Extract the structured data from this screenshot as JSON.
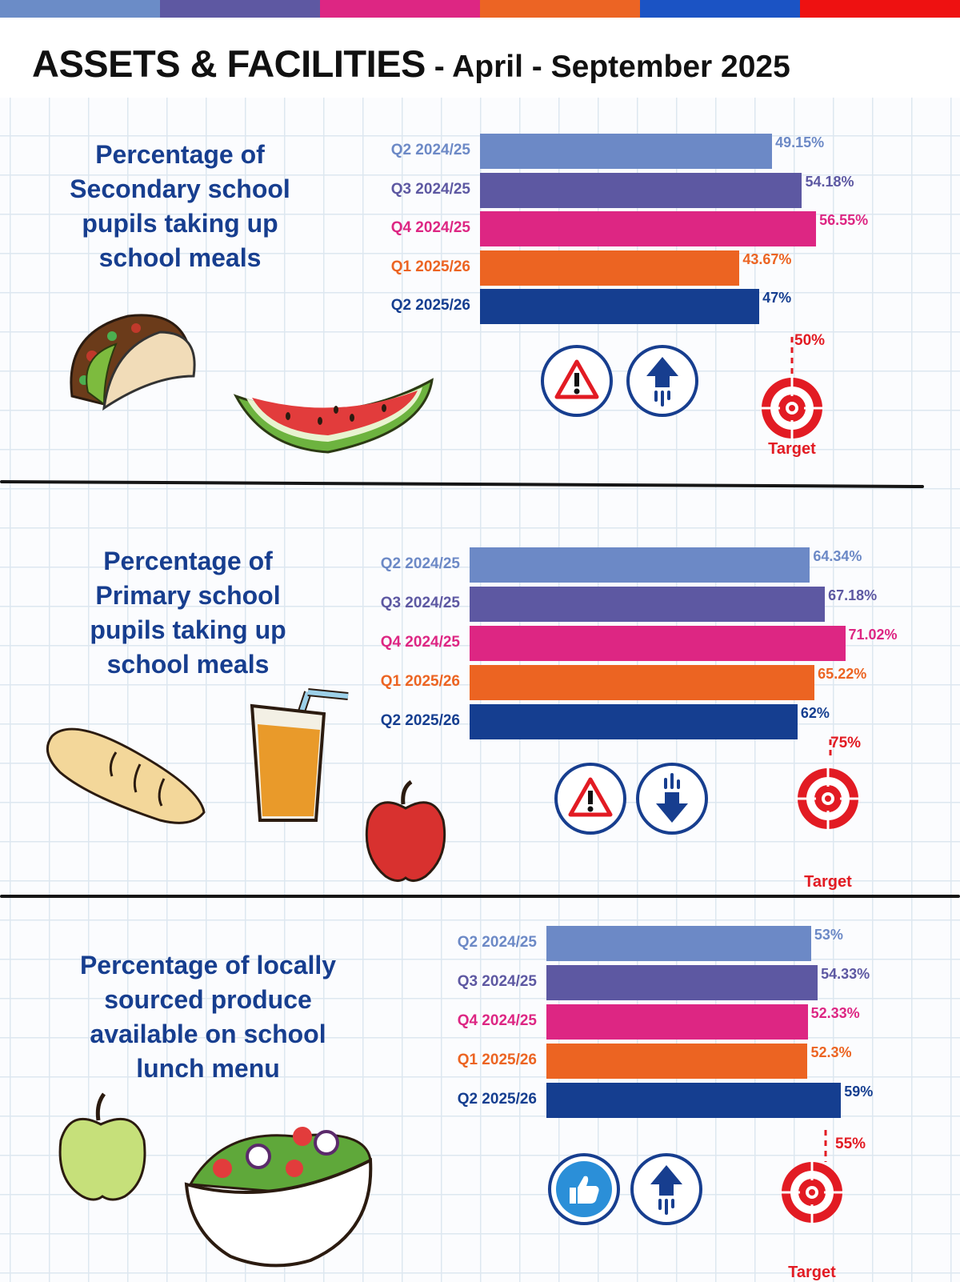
{
  "header": {
    "title_main": "ASSETS & FACILITIES",
    "title_sub": " - April - September 2025",
    "stripe_colors": [
      "#6b8cc7",
      "#5e58a2",
      "#dd2683",
      "#ec6424",
      "#1b53c4",
      "#ee1111"
    ]
  },
  "colors": {
    "q2_2425": "#6c89c6",
    "q3_2425": "#5d58a2",
    "q4_2425": "#dd2683",
    "q1_2526": "#ec6422",
    "q2_2526": "#153e90",
    "target": "#e21b23",
    "heading": "#173e8f"
  },
  "sections": [
    {
      "metric_lines": [
        "Percentage  of",
        "Secondary school",
        "pupils taking up",
        "school meals"
      ],
      "target_value": "50%",
      "target_label": "Target",
      "status_icons": [
        "warning-icon",
        "trend-up-icon"
      ]
    },
    {
      "metric_lines": [
        "Percentage of",
        "Primary school",
        "pupils taking up",
        "school meals"
      ],
      "target_value": "75%",
      "target_label": "Target",
      "status_icons": [
        "warning-icon",
        "trend-down-icon"
      ]
    },
    {
      "metric_lines": [
        "Percentage of locally",
        "sourced produce",
        "available on school",
        "lunch menu"
      ],
      "target_value": "55%",
      "target_label": "Target",
      "status_icons": [
        "thumbs-up-icon",
        "trend-up-icon"
      ]
    }
  ],
  "chart_data": [
    {
      "type": "bar",
      "orientation": "horizontal",
      "title": "Percentage of Secondary school pupils taking up school meals",
      "categories": [
        "Q2 2024/25",
        "Q3 2024/25",
        "Q4 2024/25",
        "Q1 2025/26",
        "Q2 2025/26"
      ],
      "values": [
        49.15,
        54.18,
        56.55,
        43.67,
        47
      ],
      "value_labels": [
        "49.15%",
        "54.18%",
        "56.55%",
        "43.67%",
        "47%"
      ],
      "target": 50,
      "xlim": [
        0,
        59.5
      ]
    },
    {
      "type": "bar",
      "orientation": "horizontal",
      "title": "Percentage of Primary school pupils taking up school meals",
      "categories": [
        "Q2 2024/25",
        "Q3 2024/25",
        "Q4 2024/25",
        "Q1 2025/26",
        "Q2 2025/26"
      ],
      "values": [
        64.34,
        67.18,
        71.02,
        65.22,
        62
      ],
      "value_labels": [
        "64.34%",
        "67.18%",
        "71.02%",
        "65.22%",
        "62%"
      ],
      "target": 75,
      "xlim": [
        0,
        90
      ]
    },
    {
      "type": "bar",
      "orientation": "horizontal",
      "title": "Percentage of locally sourced produce available on school lunch menu",
      "categories": [
        "Q2 2024/25",
        "Q3 2024/25",
        "Q4 2024/25",
        "Q1 2025/26",
        "Q2 2025/26"
      ],
      "values": [
        53,
        54.33,
        52.33,
        52.3,
        59
      ],
      "value_labels": [
        "53%",
        "54.33%",
        "52.33%",
        "52.3%",
        "59%"
      ],
      "target": 55,
      "xlim": [
        0,
        61.2
      ]
    }
  ]
}
